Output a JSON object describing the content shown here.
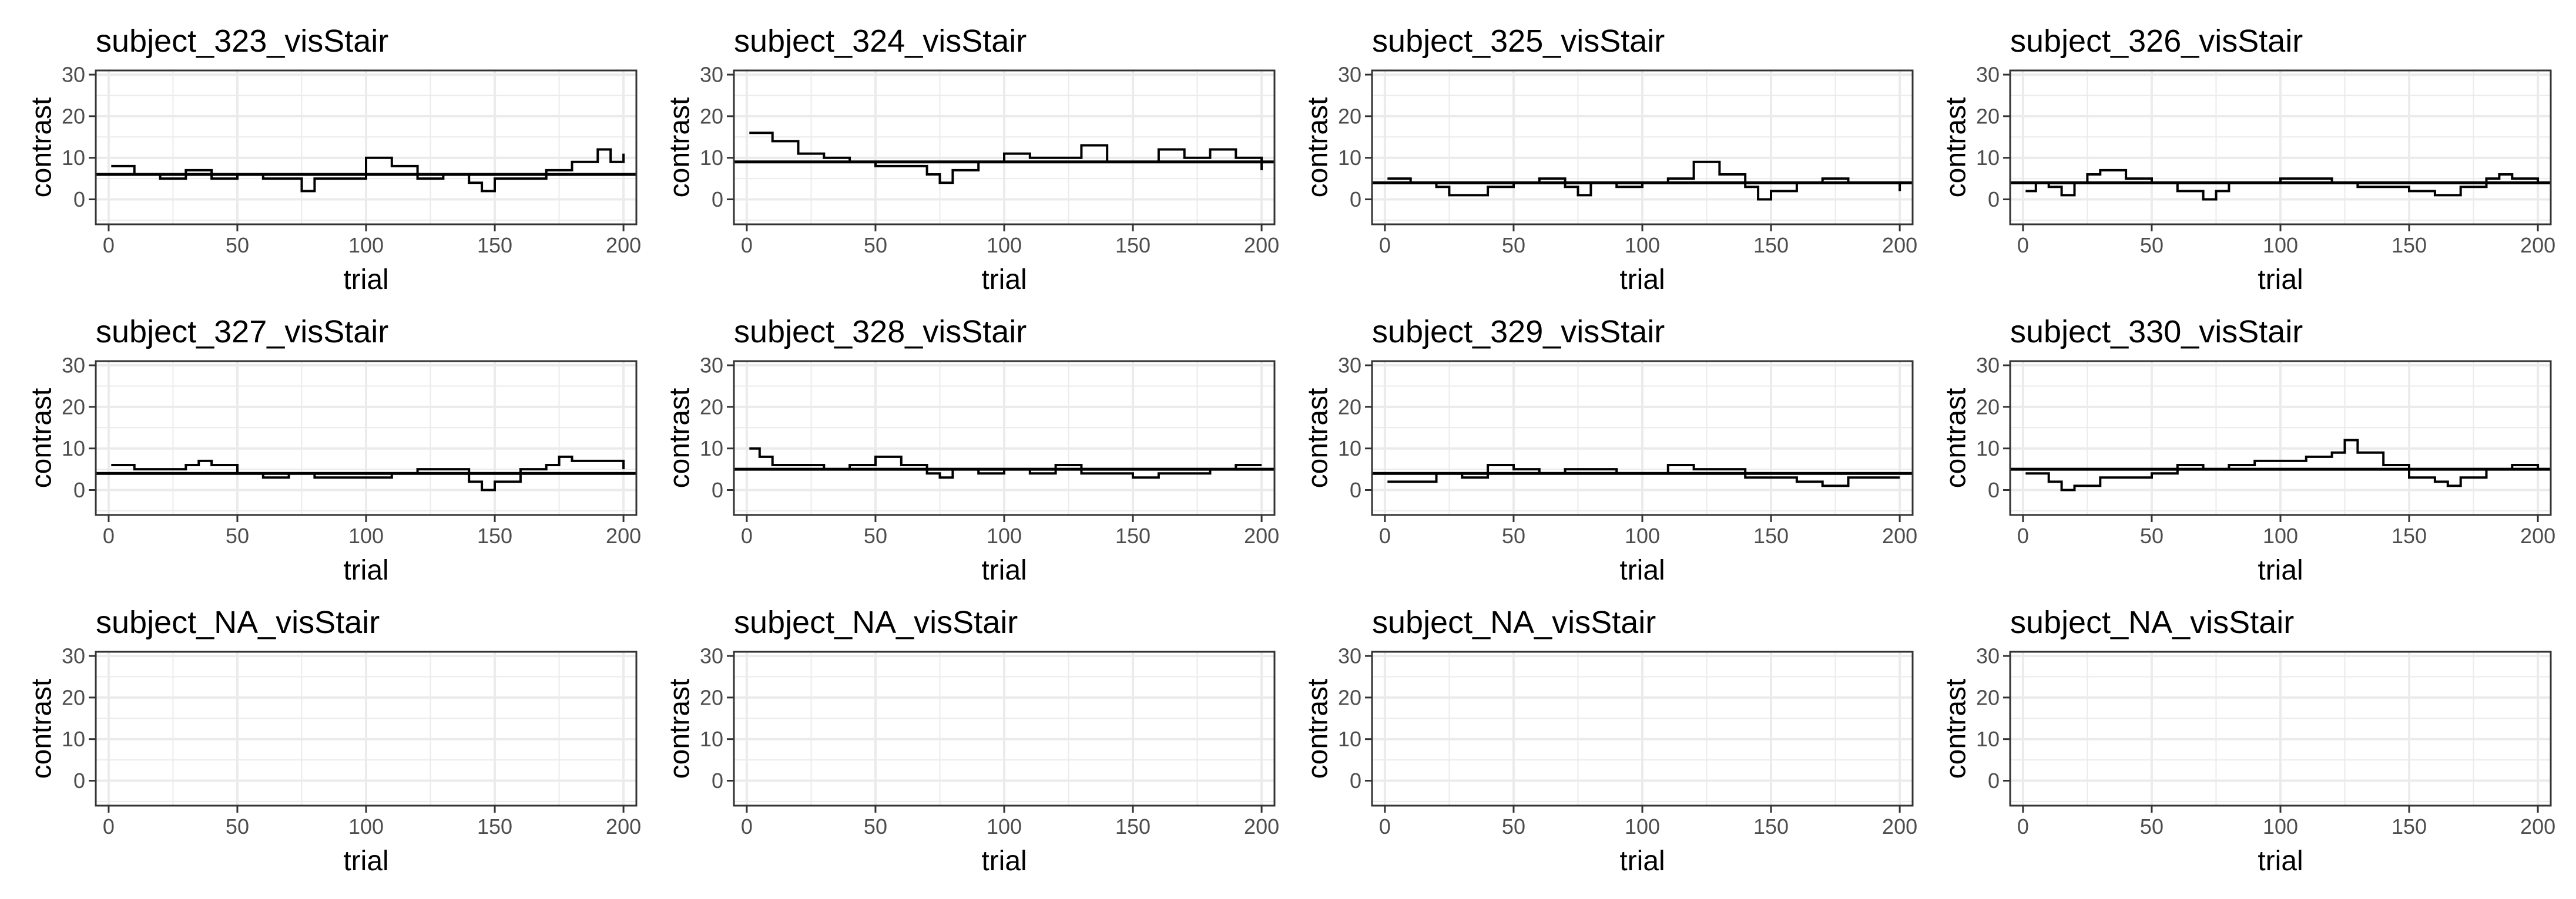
{
  "chart_data": [
    {
      "type": "line",
      "title": "subject_323_visStair",
      "xlabel": "trial",
      "ylabel": "contrast",
      "xlim": [
        -5,
        205
      ],
      "ylim": [
        -6,
        31
      ],
      "xticks": [
        0,
        50,
        100,
        150,
        200
      ],
      "yticks": [
        0,
        10,
        20,
        30
      ],
      "grid": true,
      "reference_line": 6,
      "x": [
        1,
        10,
        20,
        30,
        40,
        50,
        60,
        70,
        75,
        80,
        90,
        100,
        110,
        120,
        130,
        140,
        145,
        150,
        160,
        170,
        180,
        190,
        195,
        200
      ],
      "values": [
        8,
        6,
        5,
        7,
        5,
        6,
        5,
        5,
        2,
        5,
        5,
        10,
        8,
        5,
        6,
        4,
        2,
        5,
        5,
        7,
        9,
        12,
        9,
        11
      ]
    },
    {
      "type": "line",
      "title": "subject_324_visStair",
      "xlabel": "trial",
      "ylabel": "contrast",
      "xlim": [
        -5,
        205
      ],
      "ylim": [
        -6,
        31
      ],
      "xticks": [
        0,
        50,
        100,
        150,
        200
      ],
      "yticks": [
        0,
        10,
        20,
        30
      ],
      "grid": true,
      "reference_line": 9,
      "x": [
        1,
        5,
        10,
        20,
        30,
        40,
        50,
        60,
        70,
        75,
        80,
        90,
        100,
        110,
        120,
        130,
        140,
        150,
        160,
        170,
        180,
        190,
        200
      ],
      "values": [
        16,
        16,
        14,
        11,
        10,
        9,
        8,
        8,
        6,
        4,
        7,
        9,
        11,
        10,
        10,
        13,
        9,
        9,
        12,
        10,
        12,
        10,
        7
      ]
    },
    {
      "type": "line",
      "title": "subject_325_visStair",
      "xlabel": "trial",
      "ylabel": "contrast",
      "xlim": [
        -5,
        205
      ],
      "ylim": [
        -6,
        31
      ],
      "xticks": [
        0,
        50,
        100,
        150,
        200
      ],
      "yticks": [
        0,
        10,
        20,
        30
      ],
      "grid": true,
      "reference_line": 4,
      "x": [
        1,
        10,
        20,
        25,
        30,
        40,
        50,
        60,
        70,
        75,
        80,
        90,
        100,
        110,
        120,
        130,
        140,
        145,
        150,
        160,
        170,
        180,
        190,
        200
      ],
      "values": [
        5,
        4,
        3,
        1,
        1,
        3,
        4,
        5,
        3,
        1,
        4,
        3,
        4,
        5,
        9,
        6,
        3,
        0,
        2,
        4,
        5,
        4,
        4,
        2
      ]
    },
    {
      "type": "line",
      "title": "subject_326_visStair",
      "xlabel": "trial",
      "ylabel": "contrast",
      "xlim": [
        -5,
        205
      ],
      "ylim": [
        -6,
        31
      ],
      "xticks": [
        0,
        50,
        100,
        150,
        200
      ],
      "yticks": [
        0,
        10,
        20,
        30
      ],
      "grid": true,
      "reference_line": 4,
      "x": [
        1,
        5,
        10,
        15,
        20,
        25,
        30,
        40,
        50,
        60,
        70,
        75,
        80,
        90,
        100,
        110,
        120,
        130,
        140,
        150,
        160,
        170,
        180,
        185,
        190,
        200
      ],
      "values": [
        2,
        4,
        3,
        1,
        4,
        6,
        7,
        5,
        4,
        2,
        0,
        2,
        4,
        4,
        5,
        5,
        4,
        3,
        3,
        2,
        1,
        3,
        5,
        6,
        5,
        4
      ]
    },
    {
      "type": "line",
      "title": "subject_327_visStair",
      "xlabel": "trial",
      "ylabel": "contrast",
      "xlim": [
        -5,
        205
      ],
      "ylim": [
        -6,
        31
      ],
      "xticks": [
        0,
        50,
        100,
        150,
        200
      ],
      "yticks": [
        0,
        10,
        20,
        30
      ],
      "grid": true,
      "reference_line": 4,
      "x": [
        1,
        10,
        20,
        30,
        35,
        40,
        50,
        60,
        70,
        80,
        90,
        100,
        110,
        120,
        130,
        140,
        145,
        150,
        160,
        170,
        175,
        180,
        190,
        200
      ],
      "values": [
        6,
        5,
        5,
        6,
        7,
        6,
        4,
        3,
        4,
        3,
        3,
        3,
        4,
        5,
        5,
        2,
        0,
        2,
        5,
        6,
        8,
        7,
        7,
        5
      ]
    },
    {
      "type": "line",
      "title": "subject_328_visStair",
      "xlabel": "trial",
      "ylabel": "contrast",
      "xlim": [
        -5,
        205
      ],
      "ylim": [
        -6,
        31
      ],
      "xticks": [
        0,
        50,
        100,
        150,
        200
      ],
      "yticks": [
        0,
        10,
        20,
        30
      ],
      "grid": true,
      "reference_line": 5,
      "x": [
        1,
        5,
        10,
        20,
        30,
        40,
        50,
        55,
        60,
        70,
        75,
        80,
        90,
        100,
        110,
        120,
        130,
        140,
        150,
        160,
        170,
        180,
        190,
        200
      ],
      "values": [
        10,
        8,
        6,
        6,
        5,
        6,
        8,
        8,
        6,
        4,
        3,
        5,
        4,
        5,
        4,
        6,
        4,
        4,
        3,
        4,
        4,
        5,
        6,
        6
      ]
    },
    {
      "type": "line",
      "title": "subject_329_visStair",
      "xlabel": "trial",
      "ylabel": "contrast",
      "xlim": [
        -5,
        205
      ],
      "ylim": [
        -6,
        31
      ],
      "xticks": [
        0,
        50,
        100,
        150,
        200
      ],
      "yticks": [
        0,
        10,
        20,
        30
      ],
      "grid": true,
      "reference_line": 4,
      "x": [
        1,
        10,
        20,
        30,
        40,
        50,
        60,
        70,
        80,
        90,
        100,
        110,
        120,
        130,
        140,
        150,
        160,
        170,
        180,
        190,
        200
      ],
      "values": [
        2,
        2,
        4,
        3,
        6,
        5,
        4,
        5,
        5,
        4,
        4,
        6,
        5,
        5,
        3,
        3,
        2,
        1,
        3,
        3,
        3
      ]
    },
    {
      "type": "line",
      "title": "subject_330_visStair",
      "xlabel": "trial",
      "ylabel": "contrast",
      "xlim": [
        -5,
        205
      ],
      "ylim": [
        -6,
        31
      ],
      "xticks": [
        0,
        50,
        100,
        150,
        200
      ],
      "yticks": [
        0,
        10,
        20,
        30
      ],
      "grid": true,
      "reference_line": 5,
      "x": [
        1,
        10,
        15,
        20,
        30,
        40,
        50,
        60,
        70,
        80,
        90,
        100,
        110,
        120,
        125,
        130,
        140,
        150,
        160,
        165,
        170,
        180,
        190,
        200
      ],
      "values": [
        4,
        2,
        0,
        1,
        3,
        3,
        4,
        6,
        5,
        6,
        7,
        7,
        8,
        9,
        12,
        9,
        6,
        3,
        2,
        1,
        3,
        5,
        6,
        5
      ]
    },
    {
      "type": "line",
      "title": "subject_NA_visStair",
      "xlabel": "trial",
      "ylabel": "contrast",
      "xlim": [
        -5,
        205
      ],
      "ylim": [
        -6,
        31
      ],
      "xticks": [
        0,
        50,
        100,
        150,
        200
      ],
      "yticks": [
        0,
        10,
        20,
        30
      ],
      "grid": true,
      "x": [],
      "values": []
    },
    {
      "type": "line",
      "title": "subject_NA_visStair",
      "xlabel": "trial",
      "ylabel": "contrast",
      "xlim": [
        -5,
        205
      ],
      "ylim": [
        -6,
        31
      ],
      "xticks": [
        0,
        50,
        100,
        150,
        200
      ],
      "yticks": [
        0,
        10,
        20,
        30
      ],
      "grid": true,
      "x": [],
      "values": []
    },
    {
      "type": "line",
      "title": "subject_NA_visStair",
      "xlabel": "trial",
      "ylabel": "contrast",
      "xlim": [
        -5,
        205
      ],
      "ylim": [
        -6,
        31
      ],
      "xticks": [
        0,
        50,
        100,
        150,
        200
      ],
      "yticks": [
        0,
        10,
        20,
        30
      ],
      "grid": true,
      "x": [],
      "values": []
    },
    {
      "type": "line",
      "title": "subject_NA_visStair",
      "xlabel": "trial",
      "ylabel": "contrast",
      "xlim": [
        -5,
        205
      ],
      "ylim": [
        -6,
        31
      ],
      "xticks": [
        0,
        50,
        100,
        150,
        200
      ],
      "yticks": [
        0,
        10,
        20,
        30
      ],
      "grid": true,
      "x": [],
      "values": []
    }
  ],
  "colors": {
    "series": "#000000",
    "reference_line": "#000000",
    "grid": "#ebebeb",
    "panel_border": "#333333",
    "tick_label": "#4d4d4d"
  }
}
